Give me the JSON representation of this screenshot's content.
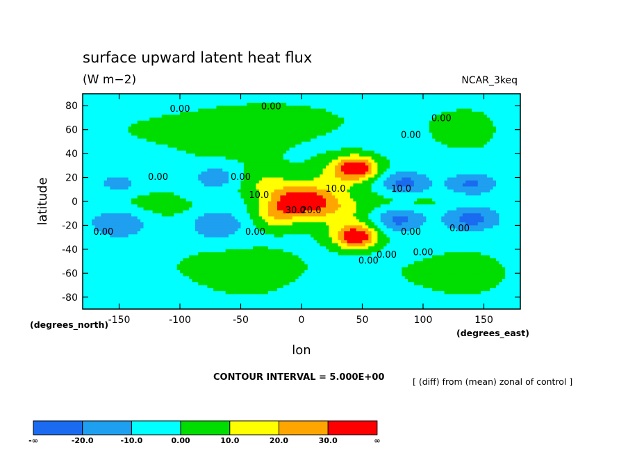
{
  "chart_data": {
    "type": "heatmap",
    "title": "surface upward latent heat flux",
    "subtitle": "(W m−2)",
    "model_label": "NCAR_3keq",
    "xlabel": "lon",
    "ylabel": "latitude",
    "x_unit_label": "(degrees_east)",
    "y_unit_label": "(degrees_north)",
    "xlim": [
      -180,
      180
    ],
    "ylim": [
      -90,
      90
    ],
    "x_ticks": [
      -150,
      -100,
      -50,
      0,
      50,
      100,
      150
    ],
    "y_ticks": [
      80,
      60,
      40,
      20,
      0,
      -20,
      -40,
      -60,
      -80
    ],
    "contour_interval_text": "CONTOUR INTERVAL = 5.000E+00",
    "note": "[ (diff) from (mean) zonal of control ]",
    "colorbar": {
      "labels": [
        "-∞",
        "-20.0",
        "-10.0",
        "0.00",
        "10.0",
        "20.0",
        "30.0",
        "∞"
      ],
      "colors": [
        "#1a6bf0",
        "#1e9ff0",
        "#00ffff",
        "#00dd00",
        "#ffff00",
        "#ffa500",
        "#ff0000"
      ]
    },
    "contour_labels": [
      {
        "text": "0.00",
        "lon": -100,
        "lat": 75
      },
      {
        "text": "0.00",
        "lon": -25,
        "lat": 77
      },
      {
        "text": "0.00",
        "lon": 115,
        "lat": 67
      },
      {
        "text": "0.00",
        "lon": 90,
        "lat": 53
      },
      {
        "text": "0.00",
        "lon": -118,
        "lat": 18
      },
      {
        "text": "0.00",
        "lon": -50,
        "lat": 18
      },
      {
        "text": "10.0",
        "lon": -35,
        "lat": 3
      },
      {
        "text": "10.0",
        "lon": 28,
        "lat": 8
      },
      {
        "text": "10.0",
        "lon": 82,
        "lat": 8
      },
      {
        "text": "30.0",
        "lon": -5,
        "lat": -10
      },
      {
        "text": "20.0",
        "lon": 8,
        "lat": -10
      },
      {
        "text": "0.00",
        "lon": -163,
        "lat": -28
      },
      {
        "text": "0.00",
        "lon": -38,
        "lat": -28
      },
      {
        "text": "0.00",
        "lon": 130,
        "lat": -25
      },
      {
        "text": "0.00",
        "lon": 90,
        "lat": -28
      },
      {
        "text": "0.00",
        "lon": 70,
        "lat": -47
      },
      {
        "text": "0.00",
        "lon": 100,
        "lat": -45
      },
      {
        "text": "0.00",
        "lon": 55,
        "lat": -52
      }
    ],
    "anomalies": [
      {
        "lon": 0,
        "lat": 0,
        "value": 42,
        "sx": 18,
        "sy": 9
      },
      {
        "lon": -22,
        "lat": -12,
        "value": 18,
        "sx": 14,
        "sy": 8
      },
      {
        "lon": -30,
        "lat": 15,
        "value": 14,
        "sx": 18,
        "sy": 10
      },
      {
        "lon": 45,
        "lat": 28,
        "value": 42,
        "sx": 12,
        "sy": 7
      },
      {
        "lon": 45,
        "lat": -30,
        "value": 42,
        "sx": 12,
        "sy": 7
      },
      {
        "lon": 30,
        "lat": -10,
        "value": 12,
        "sx": 15,
        "sy": 12
      },
      {
        "lon": 25,
        "lat": 22,
        "value": 10,
        "sx": 14,
        "sy": 10
      },
      {
        "lon": 85,
        "lat": 15,
        "value": -22,
        "sx": 14,
        "sy": 7
      },
      {
        "lon": 80,
        "lat": -15,
        "value": -22,
        "sx": 14,
        "sy": 7
      },
      {
        "lon": 140,
        "lat": 15,
        "value": -18,
        "sx": 14,
        "sy": 6
      },
      {
        "lon": 140,
        "lat": -15,
        "value": -20,
        "sx": 16,
        "sy": 7
      },
      {
        "lon": -150,
        "lat": -18,
        "value": -18,
        "sx": 18,
        "sy": 9
      },
      {
        "lon": -70,
        "lat": -20,
        "value": -16,
        "sx": 16,
        "sy": 9
      },
      {
        "lon": -150,
        "lat": 15,
        "value": -14,
        "sx": 14,
        "sy": 6
      },
      {
        "lon": -70,
        "lat": 20,
        "value": -14,
        "sx": 14,
        "sy": 7
      },
      {
        "lon": 95,
        "lat": 0,
        "value": 6,
        "sx": 25,
        "sy": 6
      },
      {
        "lon": -110,
        "lat": -5,
        "value": 4,
        "sx": 30,
        "sy": 6
      },
      {
        "lon": -120,
        "lat": 60,
        "value": 6,
        "sx": 35,
        "sy": 12
      },
      {
        "lon": 20,
        "lat": 65,
        "value": 5,
        "sx": 40,
        "sy": 12
      },
      {
        "lon": -60,
        "lat": -55,
        "value": 4,
        "sx": 60,
        "sy": 10
      },
      {
        "lon": 100,
        "lat": -60,
        "value": 3,
        "sx": 40,
        "sy": 8
      },
      {
        "lon": -60,
        "lat": 50,
        "value": 4,
        "sx": 25,
        "sy": 10
      }
    ]
  }
}
